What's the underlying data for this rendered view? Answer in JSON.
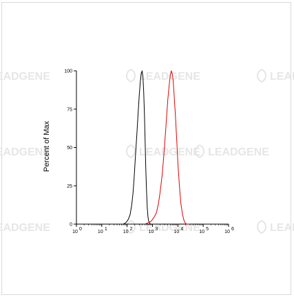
{
  "watermark": {
    "text": "LEADGENE"
  },
  "chart_data": {
    "type": "line",
    "title": "",
    "xlabel": "",
    "ylabel": "Percent of Max",
    "x_scale": "log",
    "xlim": [
      1,
      1000000
    ],
    "ylim": [
      0,
      100
    ],
    "x_ticks": [
      1,
      10,
      100,
      1000,
      10000,
      100000,
      1000000
    ],
    "x_tick_labels": [
      {
        "base": "10",
        "exp": "0"
      },
      {
        "base": "10",
        "exp": "1"
      },
      {
        "base": "10",
        "exp": "2"
      },
      {
        "base": "10",
        "exp": "3"
      },
      {
        "base": "10",
        "exp": "4"
      },
      {
        "base": "10",
        "exp": "5"
      },
      {
        "base": "10",
        "exp": "6"
      }
    ],
    "y_ticks": [
      0,
      25,
      50,
      75,
      100
    ],
    "y_tick_labels": [
      "0",
      "25",
      "50",
      "75",
      "100"
    ],
    "grid": false,
    "legend": "none",
    "series": [
      {
        "color": "#000000",
        "x": [
          70,
          90,
          110,
          130,
          150,
          170,
          190,
          210,
          240,
          270,
          300,
          330,
          360,
          390,
          420,
          450,
          480,
          510,
          540,
          580,
          620,
          660,
          700,
          760,
          820,
          900
        ],
        "y": [
          0,
          1,
          3,
          6,
          12,
          20,
          31,
          43,
          58,
          72,
          84,
          93,
          98,
          100,
          96,
          86,
          72,
          55,
          38,
          22,
          11,
          5,
          2,
          1,
          0,
          0
        ]
      },
      {
        "color": "#e00000",
        "x": [
          500,
          700,
          900,
          1100,
          1400,
          1700,
          2000,
          2400,
          2800,
          3200,
          3600,
          4000,
          4500,
          5000,
          5500,
          6000,
          6500,
          7000,
          8000,
          9000,
          10000,
          11500,
          13000,
          15000,
          17000,
          19000,
          22000,
          26000
        ],
        "y": [
          0,
          1,
          2,
          4,
          7,
          13,
          21,
          32,
          45,
          58,
          70,
          81,
          90,
          97,
          100,
          98,
          94,
          86,
          71,
          55,
          40,
          25,
          14,
          7,
          3,
          1,
          0,
          0
        ]
      }
    ]
  }
}
